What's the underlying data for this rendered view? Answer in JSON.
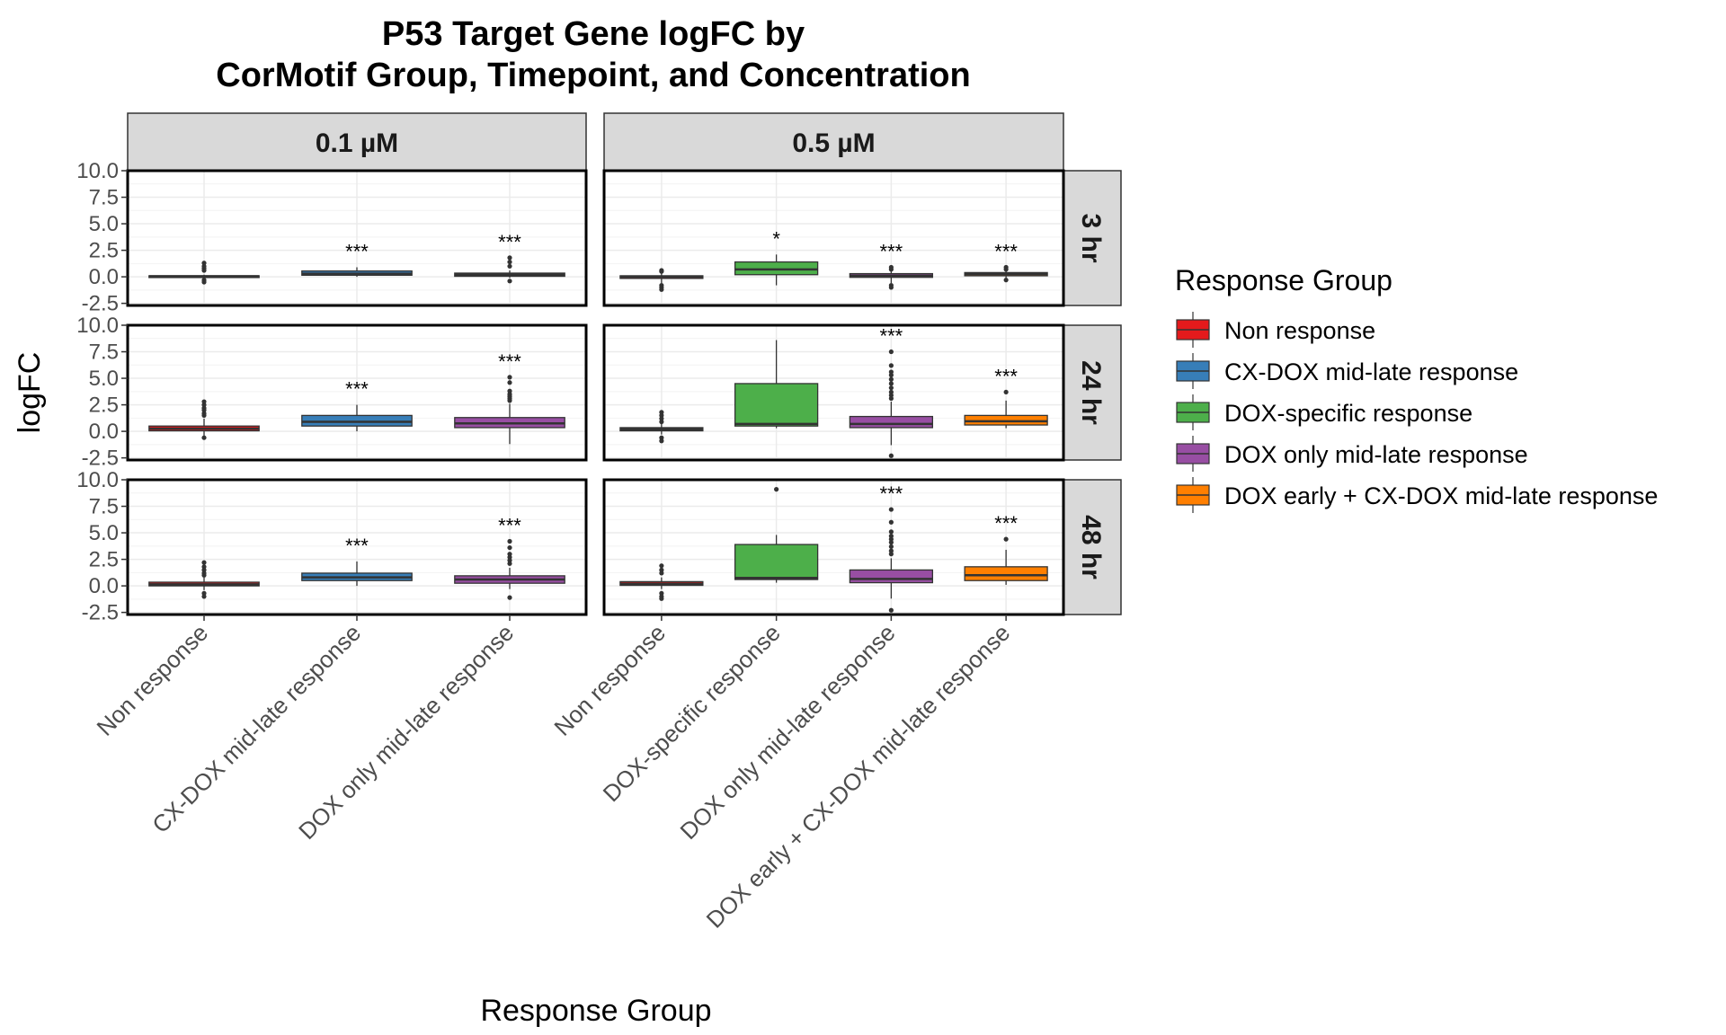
{
  "chart_data": {
    "type": "boxplot",
    "title": [
      "P53 Target Gene logFC by",
      "CorMotif Group, Timepoint, and Concentration"
    ],
    "xlabel": "Response Group",
    "ylabel": "logFC",
    "ylim": [
      -2.7,
      10.0
    ],
    "y_ticks": [
      "10.0",
      "7.5",
      "5.0",
      "2.5",
      "0.0",
      "-2.5"
    ],
    "y_tick_values": [
      10.0,
      7.5,
      5.0,
      2.5,
      0.0,
      -2.5
    ],
    "grid": true,
    "legend_position": "right",
    "legend": {
      "title": "Response Group",
      "entries": [
        {
          "label": "Non response",
          "color": "#E41A1C"
        },
        {
          "label": "CX-DOX mid-late response",
          "color": "#377EB8"
        },
        {
          "label": "DOX-specific response",
          "color": "#4DAF4A"
        },
        {
          "label": "DOX only mid-late response",
          "color": "#984EA3"
        },
        {
          "label": "DOX early + CX-DOX mid-late response",
          "color": "#FF7F00"
        }
      ]
    },
    "concentrations": [
      {
        "label": "0.1 µM",
        "categories": [
          "Non response",
          "CX-DOX mid-late response",
          "DOX only mid-late response"
        ]
      },
      {
        "label": "0.5 µM",
        "categories": [
          "Non response",
          "DOX-specific response",
          "DOX only mid-late response",
          "DOX early + CX-DOX mid-late response"
        ]
      }
    ],
    "timepoints": [
      "3 hr",
      "24 hr",
      "48 hr"
    ],
    "boxes": [
      [
        [
          {
            "group": "Non response",
            "q1": -0.05,
            "median": 0.05,
            "q3": 0.1,
            "lo": -0.1,
            "hi": 0.2,
            "sig": "",
            "outliers": [
              1.3,
              1.0,
              0.8,
              0.6,
              -0.3,
              -0.5
            ]
          },
          {
            "group": "CX-DOX mid-late response",
            "q1": 0.15,
            "median": 0.3,
            "q3": 0.55,
            "lo": 0.0,
            "hi": 0.9,
            "sig": "***",
            "outliers": []
          },
          {
            "group": "DOX only mid-late response",
            "q1": 0.05,
            "median": 0.2,
            "q3": 0.35,
            "lo": -0.1,
            "hi": 0.6,
            "sig": "***",
            "outliers": [
              1.8,
              1.4,
              1.0,
              -0.4
            ]
          }
        ],
        [
          {
            "group": "Non response",
            "q1": 0.05,
            "median": 0.25,
            "q3": 0.5,
            "lo": -0.5,
            "hi": 1.2,
            "sig": "",
            "outliers": [
              2.2,
              2.5,
              2.8,
              2.0,
              1.7,
              1.5,
              -0.6
            ]
          },
          {
            "group": "CX-DOX mid-late response",
            "q1": 0.5,
            "median": 0.9,
            "q3": 1.5,
            "lo": 0.0,
            "hi": 2.5,
            "sig": "***",
            "outliers": []
          },
          {
            "group": "DOX only mid-late response",
            "q1": 0.35,
            "median": 0.75,
            "q3": 1.3,
            "lo": -1.2,
            "hi": 2.6,
            "sig": "***",
            "outliers": [
              5.1,
              4.6,
              3.8,
              3.5,
              3.3,
              3.1,
              2.9
            ]
          }
        ],
        [
          {
            "group": "Non response",
            "q1": 0.0,
            "median": 0.15,
            "q3": 0.35,
            "lo": -0.4,
            "hi": 0.8,
            "sig": "",
            "outliers": [
              2.2,
              1.8,
              1.5,
              1.2,
              1.0,
              -0.7,
              -1.0
            ]
          },
          {
            "group": "CX-DOX mid-late response",
            "q1": 0.5,
            "median": 0.8,
            "q3": 1.2,
            "lo": 0.0,
            "hi": 2.3,
            "sig": "***",
            "outliers": []
          },
          {
            "group": "DOX only mid-late response",
            "q1": 0.25,
            "median": 0.6,
            "q3": 0.95,
            "lo": -0.3,
            "hi": 1.7,
            "sig": "***",
            "outliers": [
              4.2,
              3.6,
              3.0,
              2.7,
              2.4,
              2.1,
              -1.1
            ]
          }
        ]
      ],
      [
        [
          {
            "group": "Non response",
            "q1": -0.15,
            "median": 0.0,
            "q3": 0.1,
            "lo": -0.6,
            "hi": 0.4,
            "sig": "",
            "outliers": [
              0.6,
              0.5,
              -0.8,
              -1.0,
              -1.2
            ]
          },
          {
            "group": "DOX-specific response",
            "q1": 0.2,
            "median": 0.7,
            "q3": 1.4,
            "lo": -0.8,
            "hi": 2.1,
            "sig": "*",
            "outliers": []
          },
          {
            "group": "DOX only mid-late response",
            "q1": -0.05,
            "median": 0.1,
            "q3": 0.3,
            "lo": -0.6,
            "hi": 0.6,
            "sig": "***",
            "outliers": [
              0.9,
              0.7,
              -0.8,
              -1.0
            ]
          },
          {
            "group": "DOX early + CX-DOX mid-late response",
            "q1": 0.1,
            "median": 0.25,
            "q3": 0.4,
            "lo": -0.1,
            "hi": 0.6,
            "sig": "***",
            "outliers": [
              0.9,
              0.7,
              -0.3
            ]
          }
        ],
        [
          {
            "group": "Non response",
            "q1": 0.05,
            "median": 0.2,
            "q3": 0.35,
            "lo": -0.3,
            "hi": 0.7,
            "sig": "",
            "outliers": [
              1.8,
              1.5,
              1.2,
              0.9,
              -0.6,
              -0.9
            ]
          },
          {
            "group": "DOX-specific response",
            "q1": 0.5,
            "median": 0.7,
            "q3": 4.5,
            "lo": 0.3,
            "hi": 8.6,
            "sig": "",
            "outliers": []
          },
          {
            "group": "DOX only mid-late response",
            "q1": 0.35,
            "median": 0.7,
            "q3": 1.4,
            "lo": -1.3,
            "hi": 2.8,
            "sig": "***",
            "outliers": [
              7.5,
              6.2,
              5.6,
              5.3,
              4.9,
              4.5,
              4.1,
              3.7,
              3.4,
              3.1,
              -2.3
            ]
          },
          {
            "group": "DOX early + CX-DOX mid-late response",
            "q1": 0.6,
            "median": 0.95,
            "q3": 1.5,
            "lo": 0.3,
            "hi": 2.9,
            "sig": "***",
            "outliers": [
              3.7
            ]
          }
        ],
        [
          {
            "group": "Non response",
            "q1": 0.05,
            "median": 0.2,
            "q3": 0.4,
            "lo": -0.3,
            "hi": 0.8,
            "sig": "",
            "outliers": [
              1.9,
              1.5,
              1.2,
              -0.7,
              -1.0,
              -1.2
            ]
          },
          {
            "group": "DOX-specific response",
            "q1": 0.6,
            "median": 0.75,
            "q3": 3.9,
            "lo": 0.3,
            "hi": 4.8,
            "sig": "",
            "outliers": [
              9.1
            ]
          },
          {
            "group": "DOX only mid-late response",
            "q1": 0.3,
            "median": 0.65,
            "q3": 1.5,
            "lo": -1.2,
            "hi": 2.6,
            "sig": "***",
            "outliers": [
              7.2,
              6.0,
              5.1,
              4.7,
              4.4,
              4.1,
              3.7,
              3.3,
              3.0,
              -2.3
            ]
          },
          {
            "group": "DOX early + CX-DOX mid-late response",
            "q1": 0.5,
            "median": 1.0,
            "q3": 1.8,
            "lo": 0.1,
            "hi": 3.4,
            "sig": "***",
            "outliers": [
              4.4
            ]
          }
        ]
      ]
    ]
  }
}
